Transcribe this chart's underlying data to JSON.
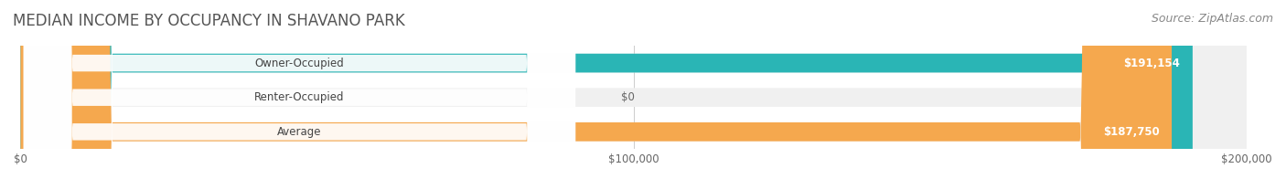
{
  "title": "MEDIAN INCOME BY OCCUPANCY IN SHAVANO PARK",
  "source": "Source: ZipAtlas.com",
  "categories": [
    "Owner-Occupied",
    "Renter-Occupied",
    "Average"
  ],
  "values": [
    191154,
    0,
    187750
  ],
  "bar_colors": [
    "#2ab5b5",
    "#c9a8d4",
    "#f5a84e"
  ],
  "label_colors": [
    "#2ab5b5",
    "#c9a8d4",
    "#f5a84e"
  ],
  "value_labels": [
    "$191,154",
    "$0",
    "$187,750"
  ],
  "bar_bg_color": "#f0f0f0",
  "xlim": [
    0,
    200000
  ],
  "xticks": [
    0,
    100000,
    200000
  ],
  "xtick_labels": [
    "$0",
    "$100,000",
    "$200,000"
  ],
  "title_fontsize": 12,
  "source_fontsize": 9,
  "bar_height": 0.55,
  "figsize": [
    14.06,
    1.96
  ],
  "dpi": 100
}
